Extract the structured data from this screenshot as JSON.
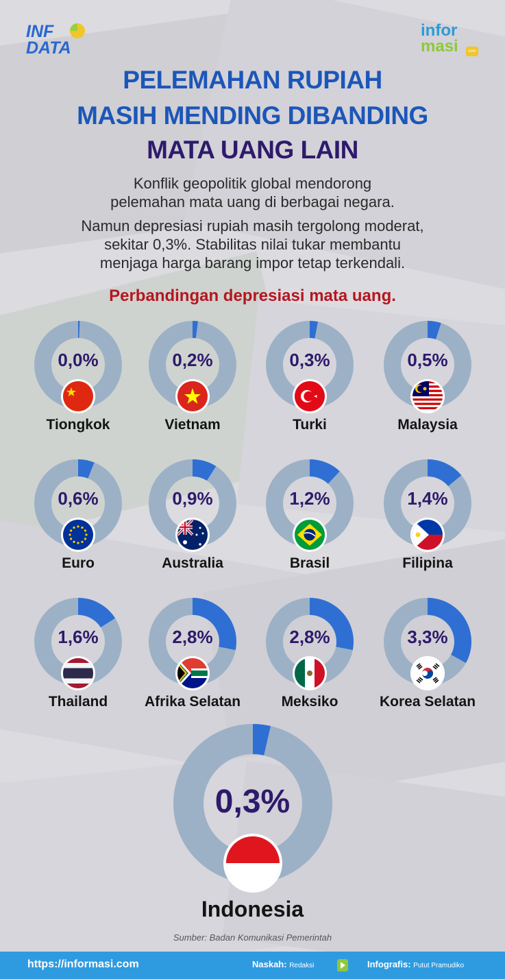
{
  "header": {
    "logo_left_line1": "INF",
    "logo_left_line2": "DATA",
    "logo_right_line1": "infor",
    "logo_right_line2": "masi",
    "logo_right_badge": "com"
  },
  "title": {
    "line1": "PELEMAHAN RUPIAH",
    "line2": "MASIH MENDING DIBANDING",
    "line3": "MATA UANG LAIN"
  },
  "description": {
    "para1_line1": "Konflik geopolitik global mendorong",
    "para1_line2": "pelemahan mata uang di berbagai negara.",
    "para2_line1": "Namun depresiasi rupiah masih tergolong moderat,",
    "para2_line2": "sekitar 0,3%. Stabilitas nilai tukar membantu",
    "para2_line3": "menjaga harga barang impor tetap terkendali."
  },
  "subtitle": "Perbandingan depresiasi mata uang.",
  "colors": {
    "ring_track": "#9cb1c6",
    "ring_fill": "#2f6fd3",
    "value_text": "#2e1a6b",
    "title_blue": "#1c56b8",
    "subtitle_red": "#b5161f",
    "footer_bg": "#2e9be0"
  },
  "chart_data": {
    "type": "donut",
    "unit": "%",
    "items": [
      {
        "country": "Tiongkok",
        "value": 0.0,
        "label": "0,0%",
        "flag": "china-flag"
      },
      {
        "country": "Vietnam",
        "value": 0.2,
        "label": "0,2%",
        "flag": "vietnam-flag"
      },
      {
        "country": "Turki",
        "value": 0.3,
        "label": "0,3%",
        "flag": "turkey-flag"
      },
      {
        "country": "Malaysia",
        "value": 0.5,
        "label": "0,5%",
        "flag": "malaysia-flag"
      },
      {
        "country": "Euro",
        "value": 0.6,
        "label": "0,6%",
        "flag": "eu-flag"
      },
      {
        "country": "Australia",
        "value": 0.9,
        "label": "0,9%",
        "flag": "australia-flag"
      },
      {
        "country": "Brasil",
        "value": 1.2,
        "label": "1,2%",
        "flag": "brazil-flag"
      },
      {
        "country": "Filipina",
        "value": 1.4,
        "label": "1,4%",
        "flag": "philippines-flag"
      },
      {
        "country": "Thailand",
        "value": 1.6,
        "label": "1,6%",
        "flag": "thailand-flag"
      },
      {
        "country": "Afrika Selatan",
        "value": 2.8,
        "label": "2,8%",
        "flag": "south-africa-flag"
      },
      {
        "country": "Meksiko",
        "value": 2.8,
        "label": "2,8%",
        "flag": "mexico-flag"
      },
      {
        "country": "Korea Selatan",
        "value": 3.3,
        "label": "3,3%",
        "flag": "south-korea-flag"
      }
    ],
    "highlight": {
      "country": "Indonesia",
      "value": 0.3,
      "label": "0,3%",
      "flag": "indonesia-flag"
    }
  },
  "source": "Sumber: Badan Komunikasi Pemerintah",
  "footer": {
    "url": "https://informasi.com",
    "naskah_label": "Naskah:",
    "naskah_value": "Redaksi",
    "infografis_label": "Infografis:",
    "infografis_value": "Putut Pramudiko"
  }
}
